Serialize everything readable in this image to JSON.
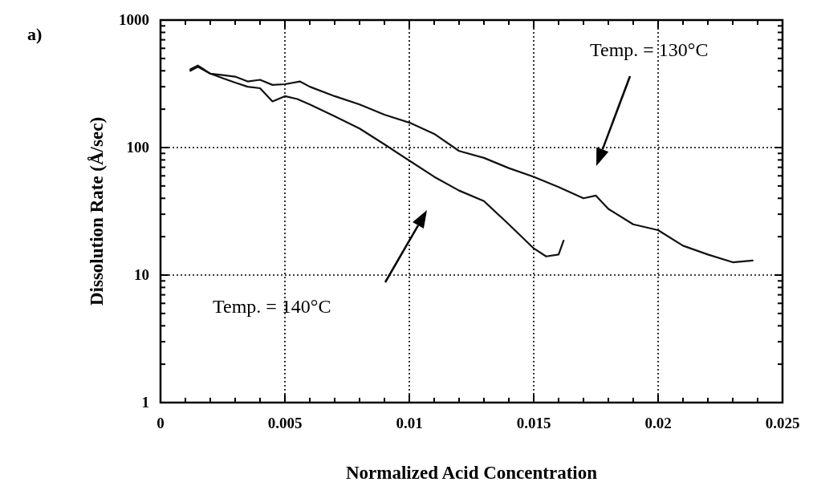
{
  "chart_data": {
    "type": "line",
    "xlabel": "Normalized Acid Concentration",
    "ylabel": "Dissolution Rate (Å/sec)",
    "log": "y",
    "grid": true,
    "marker": "none",
    "line_style": "solid",
    "xlim": [
      0,
      0.025
    ],
    "xticks": [
      0,
      0.005,
      0.01,
      0.015,
      0.02,
      0.025
    ],
    "ylim": [
      1,
      1000
    ],
    "yticks": [
      1,
      10,
      100,
      1000
    ],
    "annotations": [
      "a)",
      "Temp. = 130°C",
      "Temp. = 140°C"
    ],
    "series": [
      {
        "color": "#111111",
        "x": [
          0.0012,
          0.0015,
          0.002,
          0.0025,
          0.003,
          0.0035,
          0.004,
          0.0045,
          0.005,
          0.0056,
          0.006,
          0.007,
          0.008,
          0.009,
          0.01,
          0.011,
          0.012,
          0.013,
          0.014,
          0.015,
          0.016,
          0.017,
          0.0175,
          0.018,
          0.019,
          0.02,
          0.021,
          0.022,
          0.023,
          0.0238
        ],
        "values": [
          400,
          430,
          380,
          370,
          360,
          330,
          340,
          310,
          314,
          330,
          300,
          253,
          218,
          181,
          157,
          128,
          94,
          83,
          69,
          59,
          49,
          40,
          42,
          33,
          25,
          22.5,
          17,
          14.5,
          12.6,
          13
        ]
      },
      {
        "color": "#111111",
        "x": [
          0.0012,
          0.0015,
          0.002,
          0.0025,
          0.003,
          0.0035,
          0.004,
          0.0045,
          0.005,
          0.0055,
          0.006,
          0.007,
          0.008,
          0.009,
          0.01,
          0.011,
          0.012,
          0.013,
          0.014,
          0.015,
          0.0155,
          0.016,
          0.0162
        ],
        "values": [
          410,
          440,
          380,
          350,
          323,
          300,
          292,
          230,
          253,
          240,
          218,
          176,
          141,
          106,
          79,
          59,
          46,
          38,
          25,
          16.2,
          14,
          14.5,
          18.6
        ]
      }
    ]
  }
}
